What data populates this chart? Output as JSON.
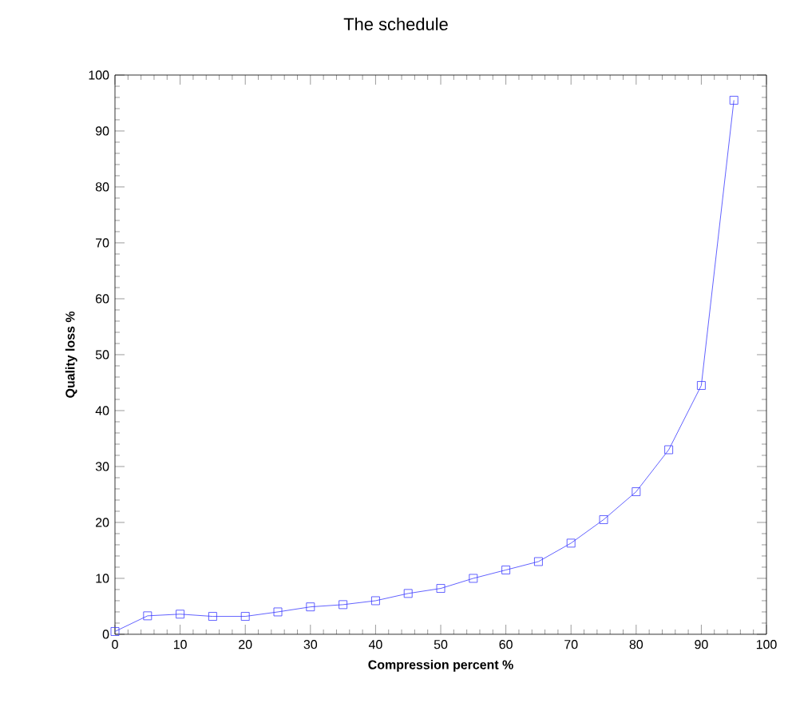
{
  "chart_data": {
    "type": "line",
    "title": "The schedule",
    "xlabel": "Compression percent %",
    "ylabel": "Quality loss %",
    "x": [
      0,
      5,
      10,
      15,
      20,
      25,
      30,
      35,
      40,
      45,
      50,
      55,
      60,
      65,
      70,
      75,
      80,
      85,
      90,
      95
    ],
    "series": [
      {
        "color": "#3a3aff",
        "values": [
          0.5,
          3.3,
          3.6,
          3.2,
          3.2,
          4.0,
          4.9,
          5.3,
          6.0,
          7.3,
          8.2,
          10.0,
          11.5,
          13.0,
          16.3,
          20.5,
          25.5,
          33.0,
          44.5,
          95.5
        ]
      }
    ],
    "xlim": [
      0,
      100
    ],
    "ylim": [
      0,
      100
    ],
    "xticks": [
      0,
      10,
      20,
      30,
      40,
      50,
      60,
      70,
      80,
      90,
      100
    ],
    "yticks": [
      0,
      10,
      20,
      30,
      40,
      50,
      60,
      70,
      80,
      90,
      100
    ],
    "marker": "square",
    "line_style": "solid"
  }
}
